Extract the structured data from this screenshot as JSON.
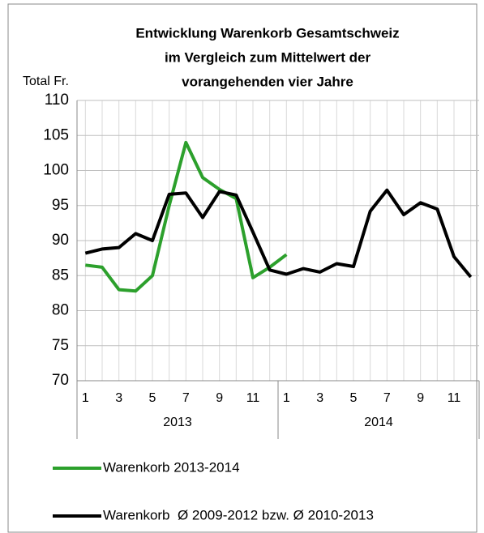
{
  "chart_data": {
    "type": "line",
    "title": [
      "Entwicklung Warenkorb Gesamtschweiz",
      "im Vergleich zum Mittelwert der",
      "vorangehenden vier Jahre"
    ],
    "y_label": "Total Fr.",
    "categories": [
      "1",
      null,
      "3",
      null,
      "5",
      null,
      "7",
      null,
      "9",
      null,
      "11",
      null,
      "1",
      null,
      "3",
      null,
      "5",
      null,
      "7",
      null,
      "9",
      null,
      "11",
      null
    ],
    "x_groups": [
      "2013",
      "2014"
    ],
    "series": [
      {
        "name": "Warenkorb 2013-2014",
        "color": "#2ca02c",
        "values": [
          86.5,
          86.2,
          83,
          82.8,
          85,
          95,
          104,
          99,
          97.3,
          96,
          84.7,
          86.2,
          88,
          null,
          null,
          null,
          null,
          null,
          null,
          null,
          null,
          null,
          null,
          null
        ]
      },
      {
        "name": "Warenkorb  Ø 2009-2012 bzw. Ø 2010-2013",
        "color": "#000000",
        "values": [
          88.2,
          88.8,
          89,
          91,
          90,
          96.6,
          96.8,
          93.3,
          97,
          96.5,
          91.2,
          85.8,
          85.2,
          86,
          85.5,
          86.7,
          86.3,
          94.2,
          97.2,
          93.7,
          95.4,
          94.5,
          87.7,
          84.8
        ]
      }
    ],
    "ylim": [
      70,
      110
    ],
    "yticks": [
      70,
      75,
      80,
      85,
      90,
      95,
      100,
      105,
      110
    ],
    "grid": true
  }
}
